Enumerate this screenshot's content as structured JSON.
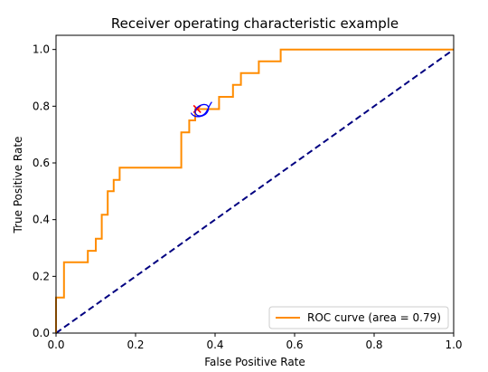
{
  "chart_data": {
    "type": "line",
    "title": "Receiver operating characteristic example",
    "xlabel": "False Positive Rate",
    "ylabel": "True Positive Rate",
    "xlim": [
      0.0,
      1.0
    ],
    "ylim": [
      0.0,
      1.05
    ],
    "x_ticks": [
      "0.0",
      "0.2",
      "0.4",
      "0.6",
      "0.8",
      "1.0"
    ],
    "y_ticks": [
      "0.0",
      "0.2",
      "0.4",
      "0.6",
      "0.8",
      "1.0"
    ],
    "grid": false,
    "legend_position": "lower right",
    "series": [
      {
        "name": "ROC curve (area = 0.79)",
        "style": "solid",
        "color": "#ff8c00",
        "x": [
          0.0,
          0.0,
          0.02,
          0.02,
          0.08,
          0.08,
          0.1,
          0.1,
          0.115,
          0.115,
          0.13,
          0.13,
          0.145,
          0.145,
          0.16,
          0.16,
          0.18,
          0.18,
          0.315,
          0.315,
          0.335,
          0.335,
          0.35,
          0.35,
          0.39,
          0.39,
          0.41,
          0.41,
          0.445,
          0.445,
          0.465,
          0.465,
          0.51,
          0.51,
          0.565,
          0.565,
          1.0
        ],
        "y": [
          0.0,
          0.125,
          0.125,
          0.25,
          0.25,
          0.29,
          0.29,
          0.333,
          0.333,
          0.417,
          0.417,
          0.5,
          0.5,
          0.54,
          0.54,
          0.583,
          0.583,
          0.583,
          0.583,
          0.708,
          0.708,
          0.75,
          0.75,
          0.79,
          0.79,
          0.79,
          0.79,
          0.833,
          0.833,
          0.875,
          0.875,
          0.917,
          0.917,
          0.958,
          0.958,
          1.0,
          1.0
        ]
      },
      {
        "name": "",
        "style": "dashed",
        "color": "#000080",
        "x": [
          0.0,
          1.0
        ],
        "y": [
          0.0,
          1.0
        ]
      }
    ],
    "annotations": [
      {
        "type": "marker",
        "shape": "x",
        "color": "#ff0000",
        "x": 0.355,
        "y": 0.79
      },
      {
        "type": "scribble",
        "color": "#0000ff",
        "x": 0.36,
        "y": 0.78
      }
    ]
  }
}
